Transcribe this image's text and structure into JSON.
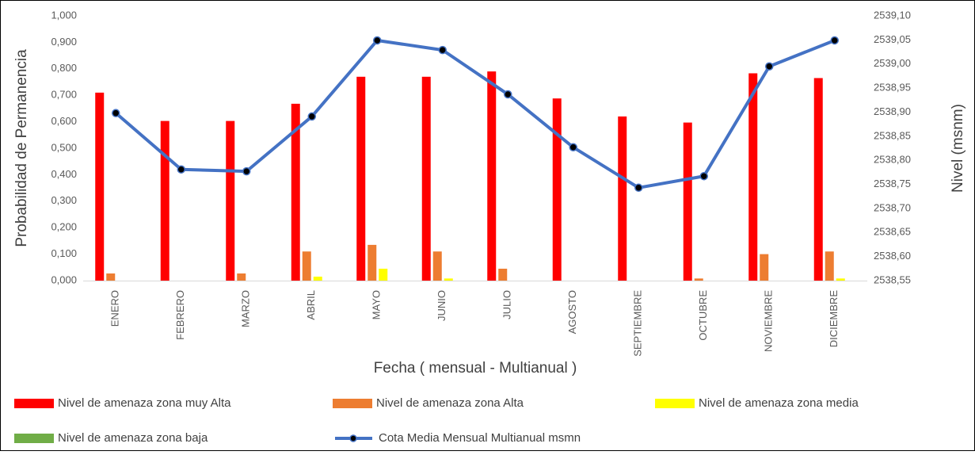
{
  "chart_data": {
    "type": "bar_line",
    "x_label": "Fecha ( mensual - Multianual )",
    "y_label": "Probabilidad de Permanencia",
    "y2_label": "Nivel (msnm)",
    "categories": [
      "ENERO",
      "FEBRERO",
      "MARZO",
      "ABRIL",
      "MAYO",
      "JUNIO",
      "JULIO",
      "AGOSTO",
      "SEPTIEMBRE",
      "OCTUBRE",
      "NOVIEMBRE",
      "DICIEMBRE"
    ],
    "series": [
      {
        "name": "Nivel de amenaza zona muy Alta",
        "type": "bar",
        "color": "#ff0000",
        "values": [
          0.71,
          0.603,
          0.603,
          0.668,
          0.77,
          0.77,
          0.79,
          0.688,
          0.62,
          0.597,
          0.783,
          0.765
        ]
      },
      {
        "name": "Nivel de amenaza zona Alta",
        "type": "bar",
        "color": "#ed7d31",
        "values": [
          0.027,
          0,
          0.027,
          0.11,
          0.135,
          0.11,
          0.045,
          0,
          0,
          0.008,
          0.1,
          0.11
        ]
      },
      {
        "name": "Nivel de amenaza zona media",
        "type": "bar",
        "color": "#ffff00",
        "values": [
          0,
          0,
          0,
          0.015,
          0.045,
          0.008,
          0,
          0,
          0,
          0,
          0,
          0.008
        ]
      },
      {
        "name": "Nivel de amenaza zona baja",
        "type": "bar",
        "color": "#70ad47",
        "values": [
          0,
          0,
          0,
          0,
          0,
          0,
          0,
          0,
          0,
          0,
          0,
          0
        ]
      },
      {
        "name": "Cota Media Mensual Multianual msmn",
        "type": "line",
        "axis": "y2",
        "color": "#4472c4",
        "values": [
          2538.898,
          2538.781,
          2538.777,
          2538.891,
          2539.049,
          2539.029,
          2538.937,
          2538.827,
          2538.743,
          2538.767,
          2538.995,
          2539.049
        ]
      }
    ],
    "ylim": [
      0,
      1
    ],
    "yticks": [
      {
        "value": 0,
        "label": "0,000"
      },
      {
        "value": 0.1,
        "label": "0,100"
      },
      {
        "value": 0.2,
        "label": "0,200"
      },
      {
        "value": 0.3,
        "label": "0,300"
      },
      {
        "value": 0.4,
        "label": "0,400"
      },
      {
        "value": 0.5,
        "label": "0,500"
      },
      {
        "value": 0.6,
        "label": "0,600"
      },
      {
        "value": 0.7,
        "label": "0,700"
      },
      {
        "value": 0.8,
        "label": "0,800"
      },
      {
        "value": 0.9,
        "label": "0,900"
      },
      {
        "value": 1,
        "label": "1,000"
      }
    ],
    "y2lim": [
      2538.55,
      2539.1
    ],
    "y2ticks": [
      {
        "value": 2538.55,
        "label": "2538,55"
      },
      {
        "value": 2538.6,
        "label": "2538,60"
      },
      {
        "value": 2538.65,
        "label": "2538,65"
      },
      {
        "value": 2538.7,
        "label": "2538,70"
      },
      {
        "value": 2538.75,
        "label": "2538,75"
      },
      {
        "value": 2538.8,
        "label": "2538,80"
      },
      {
        "value": 2538.85,
        "label": "2538,85"
      },
      {
        "value": 2538.9,
        "label": "2538,90"
      },
      {
        "value": 2538.95,
        "label": "2538,95"
      },
      {
        "value": 2539,
        "label": "2539,00"
      },
      {
        "value": 2539.05,
        "label": "2539,05"
      },
      {
        "value": 2539.1,
        "label": "2539,10"
      }
    ],
    "grid": false,
    "legend": "bottom"
  }
}
